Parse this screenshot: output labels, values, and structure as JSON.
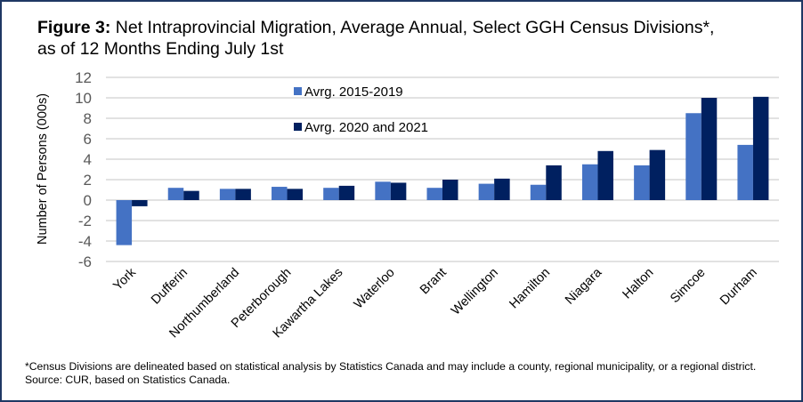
{
  "title": {
    "bold_prefix": "Figure 3:",
    "line1_rest": " Net Intraprovincial Migration, Average Annual, Select GGH Census Divisions*,",
    "line2": "as of 12 Months Ending July 1st"
  },
  "footnote": "*Census Divisions are delineated based on statistical analysis by Statistics Canada and may include a county, regional municipality, or a regional district. Source: CUR, based on Statistics Canada.",
  "colors": {
    "series1": "#4472c4",
    "series2": "#002060",
    "grid": "#d9d9d9",
    "border": "#1f3864",
    "tick_text": "#595959"
  },
  "chart_data": {
    "type": "bar",
    "title": "Figure 3: Net Intraprovincial Migration, Average Annual, Select GGH Census Divisions*, as of 12 Months Ending July 1st",
    "xlabel": "",
    "ylabel": "Number of Persons (000s)",
    "ylim": [
      -6,
      12
    ],
    "yticks": [
      "12",
      "10",
      "8",
      "6",
      "4",
      "2",
      "0",
      "-2",
      "-4",
      "-6"
    ],
    "ytick_values": [
      12,
      10,
      8,
      6,
      4,
      2,
      0,
      -2,
      -4,
      -6
    ],
    "grid": true,
    "legend_position": "top-center",
    "categories": [
      "York",
      "Dufferin",
      "Northumberland",
      "Peterborough",
      "Kawartha Lakes",
      "Waterloo",
      "Brant",
      "Wellington",
      "Hamilton",
      "Niagara",
      "Halton",
      "Simcoe",
      "Durham"
    ],
    "series": [
      {
        "name": "Avrg. 2015-2019",
        "values": [
          -4.4,
          1.2,
          1.1,
          1.3,
          1.2,
          1.8,
          1.2,
          1.6,
          1.5,
          3.5,
          3.4,
          8.5,
          5.4
        ]
      },
      {
        "name": "Avrg. 2020 and 2021",
        "values": [
          -0.6,
          0.9,
          1.1,
          1.1,
          1.4,
          1.7,
          2.0,
          2.1,
          3.4,
          4.8,
          4.9,
          10.0,
          10.1
        ]
      }
    ]
  }
}
